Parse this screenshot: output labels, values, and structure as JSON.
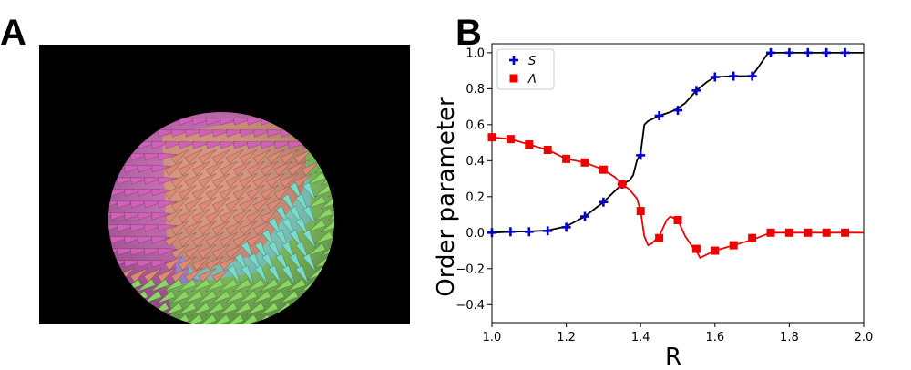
{
  "panels": {
    "a_label": "A",
    "b_label": "B"
  },
  "render": {
    "colors": {
      "background": "#000000",
      "magenta": "#d060b8",
      "salmon": "#dc8a74",
      "green": "#8ad662",
      "cyan": "#78dcc8",
      "lavender": "#b08ce0"
    }
  },
  "chart_data": {
    "type": "line",
    "xlabel": "R",
    "ylabel": "Order parameter",
    "xlim": [
      1.0,
      2.0
    ],
    "ylim": [
      -0.5,
      1.05
    ],
    "xticks": [
      "1.0",
      "1.2",
      "1.4",
      "1.6",
      "1.8",
      "2.0"
    ],
    "yticks": [
      "−0.4",
      "−0.2",
      "0.0",
      "0.2",
      "0.4",
      "0.6",
      "0.8",
      "1.0"
    ],
    "xtick_values": [
      1.0,
      1.2,
      1.4,
      1.6,
      1.8,
      2.0
    ],
    "ytick_values": [
      -0.4,
      -0.2,
      0.0,
      0.2,
      0.4,
      0.6,
      0.8,
      1.0
    ],
    "legend": {
      "position": "top-left",
      "entries": [
        "S",
        "Λ"
      ]
    },
    "series": [
      {
        "name": "S",
        "color": "#0000cc",
        "line_color": "#000000",
        "marker": "plus",
        "line_x": [
          1.0,
          1.05,
          1.1,
          1.15,
          1.2,
          1.25,
          1.3,
          1.33,
          1.35,
          1.37,
          1.38,
          1.39,
          1.4,
          1.41,
          1.42,
          1.45,
          1.48,
          1.5,
          1.52,
          1.55,
          1.58,
          1.6,
          1.65,
          1.7,
          1.72,
          1.74,
          1.75,
          1.8,
          1.85,
          1.9,
          1.95,
          2.0
        ],
        "line_y": [
          0.0,
          0.005,
          0.007,
          0.012,
          0.035,
          0.09,
          0.17,
          0.23,
          0.27,
          0.29,
          0.32,
          0.4,
          0.44,
          0.6,
          0.62,
          0.65,
          0.67,
          0.69,
          0.72,
          0.79,
          0.84,
          0.865,
          0.87,
          0.87,
          0.93,
          0.99,
          1.0,
          1.0,
          1.0,
          1.0,
          1.0,
          1.0
        ],
        "marker_x": [
          1.0,
          1.05,
          1.1,
          1.15,
          1.2,
          1.25,
          1.3,
          1.35,
          1.4,
          1.45,
          1.5,
          1.55,
          1.6,
          1.65,
          1.7,
          1.75,
          1.8,
          1.85,
          1.9,
          1.95
        ],
        "marker_y": [
          0.0,
          0.005,
          0.005,
          0.01,
          0.03,
          0.09,
          0.17,
          0.27,
          0.43,
          0.65,
          0.68,
          0.79,
          0.865,
          0.87,
          0.87,
          1.0,
          1.0,
          1.0,
          1.0,
          1.0
        ]
      },
      {
        "name": "Λ",
        "color": "#ee0000",
        "line_color": "#ee0000",
        "marker": "square",
        "line_x": [
          1.0,
          1.05,
          1.1,
          1.15,
          1.2,
          1.25,
          1.3,
          1.33,
          1.35,
          1.37,
          1.39,
          1.4,
          1.41,
          1.42,
          1.43,
          1.45,
          1.47,
          1.48,
          1.5,
          1.52,
          1.54,
          1.55,
          1.56,
          1.58,
          1.6,
          1.65,
          1.7,
          1.75,
          1.8,
          1.85,
          1.9,
          1.95,
          2.0
        ],
        "line_y": [
          0.53,
          0.52,
          0.49,
          0.46,
          0.41,
          0.39,
          0.35,
          0.31,
          0.27,
          0.24,
          0.19,
          0.12,
          -0.02,
          -0.07,
          -0.06,
          -0.02,
          0.07,
          0.09,
          0.07,
          -0.02,
          -0.08,
          -0.1,
          -0.14,
          -0.12,
          -0.1,
          -0.07,
          -0.04,
          0.0,
          0.0,
          0.0,
          0.0,
          0.0,
          0.0
        ],
        "marker_x": [
          1.0,
          1.05,
          1.1,
          1.15,
          1.2,
          1.25,
          1.3,
          1.35,
          1.4,
          1.45,
          1.5,
          1.55,
          1.6,
          1.65,
          1.7,
          1.75,
          1.8,
          1.85,
          1.9,
          1.95
        ],
        "marker_y": [
          0.53,
          0.52,
          0.49,
          0.46,
          0.41,
          0.39,
          0.35,
          0.27,
          0.12,
          -0.03,
          0.07,
          -0.09,
          -0.1,
          -0.07,
          -0.03,
          0.0,
          0.0,
          0.0,
          0.0,
          0.0
        ]
      }
    ]
  }
}
